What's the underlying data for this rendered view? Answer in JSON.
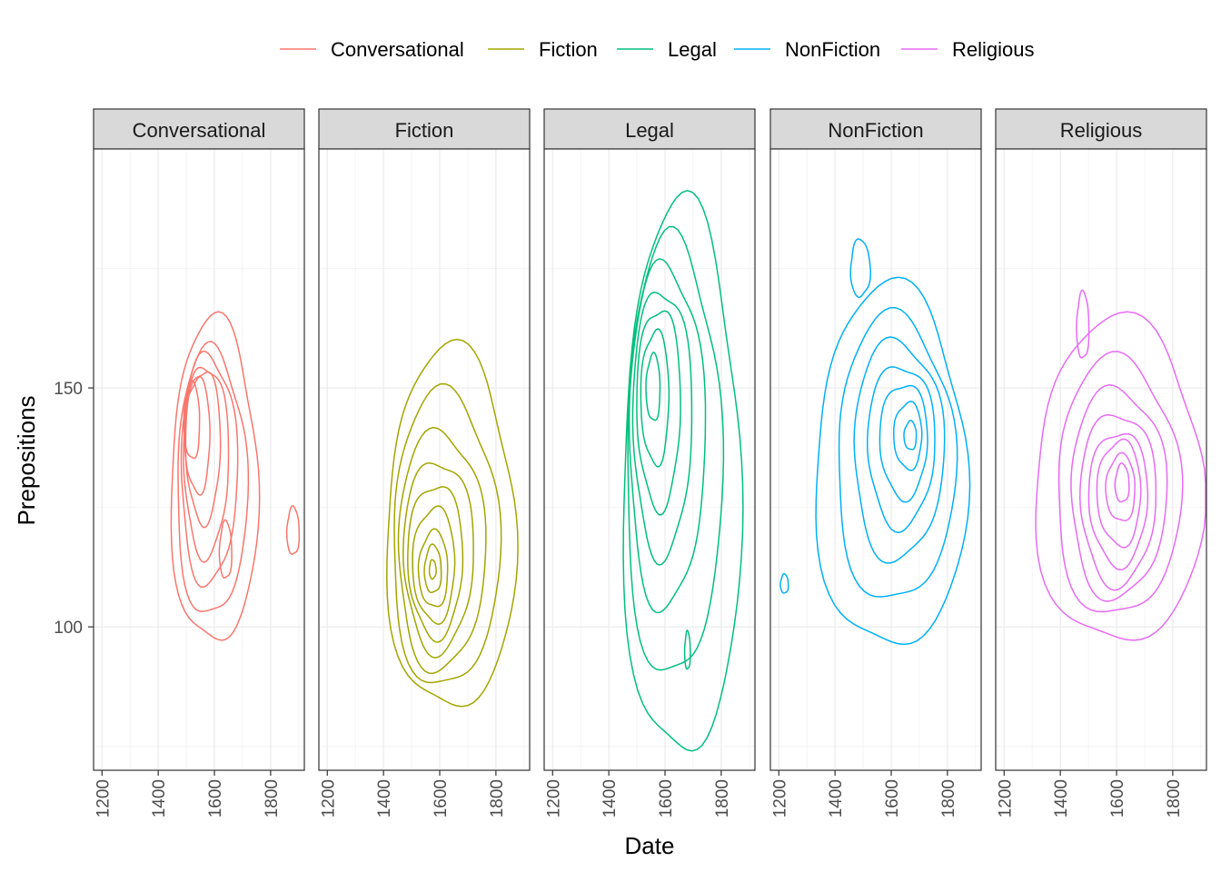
{
  "chart_data": {
    "type": "contour",
    "geom": "2d density contours, faceted by genre",
    "xlabel": "Date",
    "ylabel": "Prepositions",
    "xlim": [
      1170,
      1920
    ],
    "ylim": [
      70,
      200
    ],
    "x_ticks": [
      1200,
      1400,
      1600,
      1800
    ],
    "y_ticks": [
      100,
      150
    ],
    "grid": true,
    "legend_position": "top",
    "panels": [
      {
        "name": "Conversational",
        "color": "#F8766D",
        "center": [
          1610,
          133
        ],
        "peaks": [
          [
            1500,
            145
          ],
          [
            1640,
            118
          ]
        ],
        "levels": [
          {
            "cx": 1600,
            "cy": 130,
            "rx": 155,
            "ry": 34
          },
          {
            "cx": 1590,
            "cy": 130,
            "rx": 125,
            "ry": 28
          },
          {
            "cx": 1580,
            "cy": 133,
            "rx": 100,
            "ry": 24
          },
          {
            "cx": 1570,
            "cy": 135,
            "rx": 80,
            "ry": 20
          },
          {
            "cx": 1560,
            "cy": 138,
            "rx": 62,
            "ry": 16
          },
          {
            "cx": 1540,
            "cy": 140,
            "rx": 45,
            "ry": 12
          },
          {
            "cx": 1520,
            "cy": 143,
            "rx": 28,
            "ry": 8
          },
          {
            "cx": 1640,
            "cy": 116,
            "rx": 22,
            "ry": 6
          }
        ],
        "extra": [
          {
            "cx": 1880,
            "cy": 120,
            "rx": 22,
            "ry": 5
          }
        ]
      },
      {
        "name": "Fiction",
        "color": "#A3A500",
        "center": [
          1600,
          115
        ],
        "peaks": [
          [
            1580,
            112
          ]
        ],
        "levels": [
          {
            "cx": 1640,
            "cy": 120,
            "rx": 230,
            "ry": 38
          },
          {
            "cx": 1620,
            "cy": 118,
            "rx": 190,
            "ry": 31
          },
          {
            "cx": 1605,
            "cy": 116,
            "rx": 155,
            "ry": 25
          },
          {
            "cx": 1595,
            "cy": 115,
            "rx": 125,
            "ry": 20
          },
          {
            "cx": 1585,
            "cy": 114,
            "rx": 98,
            "ry": 16
          },
          {
            "cx": 1580,
            "cy": 113,
            "rx": 75,
            "ry": 12
          },
          {
            "cx": 1578,
            "cy": 112,
            "rx": 52,
            "ry": 8
          },
          {
            "cx": 1576,
            "cy": 112,
            "rx": 30,
            "ry": 5
          },
          {
            "cx": 1575,
            "cy": 112,
            "rx": 12,
            "ry": 2
          }
        ],
        "extra": []
      },
      {
        "name": "Legal",
        "color": "#00BF7D",
        "center": [
          1620,
          140
        ],
        "peaks": [
          [
            1560,
            150
          ],
          [
            1680,
            95
          ]
        ],
        "levels": [
          {
            "cx": 1660,
            "cy": 130,
            "rx": 210,
            "ry": 58
          },
          {
            "cx": 1630,
            "cy": 135,
            "rx": 170,
            "ry": 46
          },
          {
            "cx": 1605,
            "cy": 140,
            "rx": 135,
            "ry": 36
          },
          {
            "cx": 1590,
            "cy": 143,
            "rx": 105,
            "ry": 28
          },
          {
            "cx": 1578,
            "cy": 146,
            "rx": 78,
            "ry": 21
          },
          {
            "cx": 1565,
            "cy": 148,
            "rx": 50,
            "ry": 14
          },
          {
            "cx": 1558,
            "cy": 150,
            "rx": 25,
            "ry": 7
          }
        ],
        "extra": [
          {
            "cx": 1680,
            "cy": 95,
            "rx": 10,
            "ry": 4
          }
        ]
      },
      {
        "name": "NonFiction",
        "color": "#00B0F6",
        "center": [
          1620,
          133
        ],
        "peaks": [
          [
            1670,
            140
          ]
        ],
        "levels": [
          {
            "cx": 1600,
            "cy": 133,
            "rx": 270,
            "ry": 38
          },
          {
            "cx": 1615,
            "cy": 135,
            "rx": 210,
            "ry": 30
          },
          {
            "cx": 1625,
            "cy": 137,
            "rx": 160,
            "ry": 23
          },
          {
            "cx": 1635,
            "cy": 138,
            "rx": 120,
            "ry": 17
          },
          {
            "cx": 1645,
            "cy": 139,
            "rx": 85,
            "ry": 12
          },
          {
            "cx": 1660,
            "cy": 140,
            "rx": 50,
            "ry": 7
          },
          {
            "cx": 1668,
            "cy": 140,
            "rx": 22,
            "ry": 3
          }
        ],
        "extra": [
          {
            "cx": 1220,
            "cy": 109,
            "rx": 14,
            "ry": 2
          },
          {
            "cx": 1490,
            "cy": 175,
            "rx": 35,
            "ry": 6
          }
        ]
      },
      {
        "name": "Religious",
        "color": "#E76BF3",
        "center": [
          1600,
          128
        ],
        "peaks": [
          [
            1620,
            130
          ]
        ],
        "levels": [
          {
            "cx": 1610,
            "cy": 130,
            "rx": 300,
            "ry": 34
          },
          {
            "cx": 1605,
            "cy": 129,
            "rx": 220,
            "ry": 27
          },
          {
            "cx": 1605,
            "cy": 128,
            "rx": 170,
            "ry": 22
          },
          {
            "cx": 1605,
            "cy": 127,
            "rx": 135,
            "ry": 18
          },
          {
            "cx": 1607,
            "cy": 127,
            "rx": 105,
            "ry": 14
          },
          {
            "cx": 1610,
            "cy": 128,
            "rx": 78,
            "ry": 11
          },
          {
            "cx": 1615,
            "cy": 129,
            "rx": 52,
            "ry": 7
          },
          {
            "cx": 1620,
            "cy": 130,
            "rx": 25,
            "ry": 4
          }
        ],
        "extra": [
          {
            "cx": 1480,
            "cy": 163,
            "rx": 22,
            "ry": 7
          }
        ]
      }
    ]
  }
}
